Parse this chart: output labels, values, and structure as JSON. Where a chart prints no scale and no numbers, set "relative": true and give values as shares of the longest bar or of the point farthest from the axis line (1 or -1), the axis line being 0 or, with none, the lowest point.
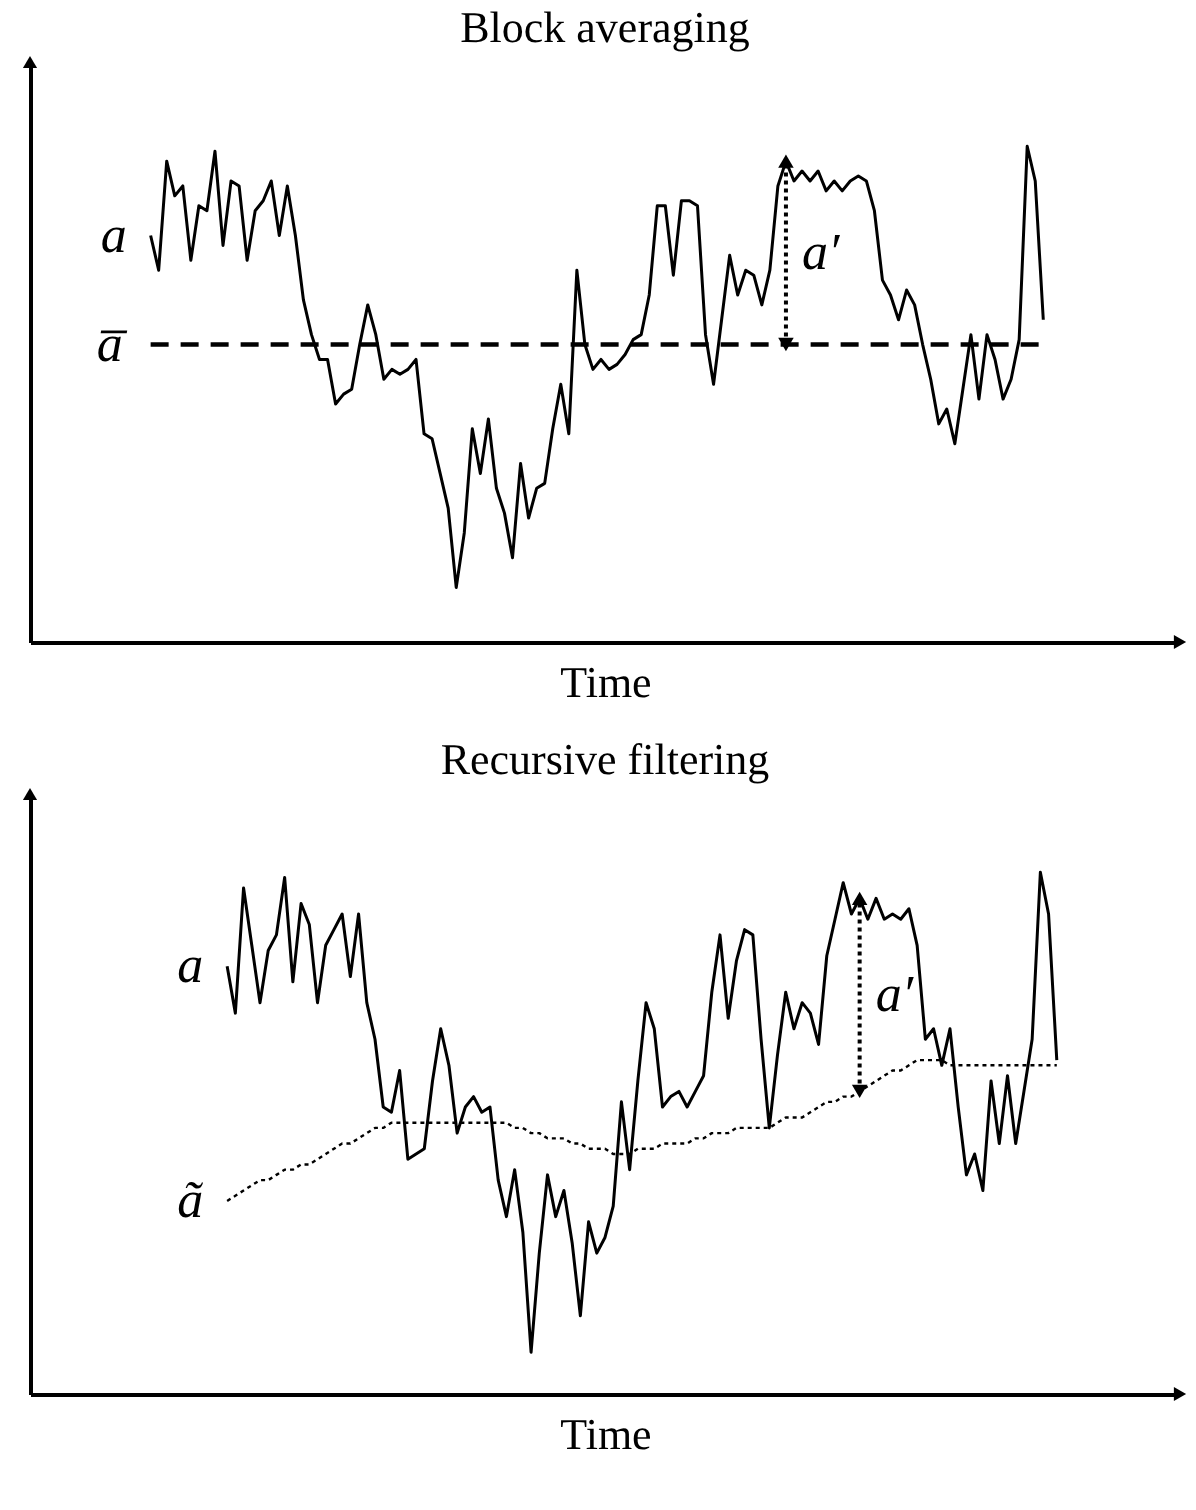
{
  "chart_data": [
    {
      "type": "line",
      "title": "Block averaging",
      "xlabel": "Time",
      "relative": true,
      "tick_labels": false,
      "grid": false,
      "categories": [
        null,
        null,
        null,
        null,
        null,
        null,
        null,
        null,
        null,
        null,
        null,
        null,
        null,
        null,
        null,
        null,
        null,
        null,
        null,
        null,
        null,
        null,
        null,
        null,
        null,
        null,
        null,
        null,
        null,
        null,
        null,
        null,
        null,
        null,
        null,
        null,
        null,
        null,
        null,
        null,
        null,
        null,
        null,
        null,
        null,
        null,
        null,
        null,
        null,
        null,
        null,
        null,
        null,
        null,
        null,
        null,
        null,
        null,
        null,
        null,
        null,
        null,
        null,
        null,
        null,
        null,
        null,
        null,
        null,
        null,
        null,
        null,
        null,
        null,
        null,
        null,
        null,
        null,
        null,
        null,
        null,
        null,
        null,
        null,
        null,
        null,
        null,
        null,
        null,
        null,
        null,
        null,
        null,
        null,
        null,
        null,
        null,
        null,
        null,
        null,
        null,
        null,
        null,
        null,
        null,
        null,
        null,
        null,
        null,
        null,
        null,
        null,
        null,
        null,
        null,
        null,
        null,
        null,
        null,
        null,
        null,
        null,
        null,
        null,
        null,
        null,
        null,
        null,
        null,
        null,
        null,
        null,
        null,
        null,
        null,
        null,
        null,
        null,
        null,
        null,
        null,
        null,
        null,
        null
      ],
      "series": [
        {
          "name": "a",
          "color": "#000000",
          "line_style": "solid",
          "values": [
            null,
            null,
            null,
            null,
            null,
            null,
            null,
            null,
            null,
            null,
            null,
            null,
            null,
            null,
            null,
            0.82,
            0.75,
            0.97,
            0.9,
            0.92,
            0.77,
            0.88,
            0.87,
            0.99,
            0.8,
            0.93,
            0.92,
            0.77,
            0.87,
            0.89,
            0.93,
            0.82,
            0.92,
            0.82,
            0.69,
            0.62,
            0.57,
            0.57,
            0.48,
            0.5,
            0.51,
            0.6,
            0.68,
            0.62,
            0.53,
            0.55,
            0.54,
            0.55,
            0.57,
            0.42,
            0.41,
            0.34,
            0.27,
            0.11,
            0.22,
            0.43,
            0.34,
            0.45,
            0.31,
            0.26,
            0.17,
            0.36,
            0.25,
            0.31,
            0.32,
            0.43,
            0.52,
            0.42,
            0.75,
            0.6,
            0.55,
            0.57,
            0.55,
            0.56,
            0.58,
            0.61,
            0.62,
            0.7,
            0.88,
            0.88,
            0.74,
            0.89,
            0.89,
            0.88,
            0.62,
            0.52,
            0.65,
            0.78,
            0.7,
            0.75,
            0.74,
            0.68,
            0.75,
            0.92,
            0.97,
            0.93,
            0.95,
            0.93,
            0.95,
            0.91,
            0.93,
            0.91,
            0.93,
            0.94,
            0.93,
            0.87,
            0.73,
            0.7,
            0.65,
            0.71,
            0.68,
            0.6,
            0.53,
            0.44,
            0.47,
            0.4,
            0.51,
            0.62,
            0.49,
            0.62,
            0.57,
            0.49,
            0.53,
            0.61,
            1.0,
            0.93,
            0.65,
            null,
            null,
            null,
            null,
            null,
            null,
            null,
            null,
            null,
            null,
            null,
            null,
            null,
            null,
            null,
            null,
            null
          ]
        }
      ],
      "ref_lines": [
        {
          "axis": "y",
          "value": 0.6,
          "label": "a̅",
          "color": "#000000",
          "line_style": "dashed"
        }
      ],
      "annotations": [
        "a′"
      ]
    },
    {
      "type": "line",
      "title": "Recursive filtering",
      "xlabel": "Time",
      "relative": true,
      "tick_labels": false,
      "grid": false,
      "categories": [
        null,
        null,
        null,
        null,
        null,
        null,
        null,
        null,
        null,
        null,
        null,
        null,
        null,
        null,
        null,
        null,
        null,
        null,
        null,
        null,
        null,
        null,
        null,
        null,
        null,
        null,
        null,
        null,
        null,
        null,
        null,
        null,
        null,
        null,
        null,
        null,
        null,
        null,
        null,
        null,
        null,
        null,
        null,
        null,
        null,
        null,
        null,
        null,
        null,
        null,
        null,
        null,
        null,
        null,
        null,
        null,
        null,
        null,
        null,
        null,
        null,
        null,
        null,
        null,
        null,
        null,
        null,
        null,
        null,
        null,
        null,
        null,
        null,
        null,
        null,
        null,
        null,
        null,
        null,
        null,
        null,
        null,
        null,
        null,
        null,
        null,
        null,
        null,
        null,
        null,
        null,
        null,
        null,
        null,
        null,
        null,
        null,
        null,
        null,
        null,
        null,
        null,
        null,
        null,
        null,
        null,
        null,
        null,
        null,
        null,
        null,
        null,
        null,
        null,
        null,
        null,
        null,
        null,
        null,
        null,
        null,
        null,
        null,
        null,
        null,
        null,
        null,
        null,
        null,
        null,
        null,
        null,
        null,
        null,
        null,
        null,
        null,
        null,
        null,
        null,
        null
      ],
      "series": [
        {
          "name": "a",
          "color": "#000000",
          "line_style": "solid",
          "values": [
            null,
            null,
            null,
            null,
            null,
            null,
            null,
            null,
            null,
            null,
            null,
            null,
            null,
            null,
            null,
            null,
            null,
            null,
            null,
            null,
            null,
            null,
            null,
            null,
            0.82,
            0.73,
            0.97,
            0.86,
            0.75,
            0.85,
            0.88,
            0.99,
            0.79,
            0.94,
            0.9,
            0.75,
            0.86,
            0.89,
            0.92,
            0.8,
            0.92,
            0.75,
            0.68,
            0.55,
            0.54,
            0.62,
            0.45,
            0.46,
            0.47,
            0.6,
            0.7,
            0.63,
            0.5,
            0.55,
            0.57,
            0.54,
            0.55,
            0.41,
            0.34,
            0.43,
            0.31,
            0.08,
            0.27,
            0.42,
            0.34,
            0.39,
            0.29,
            0.15,
            0.33,
            0.27,
            0.3,
            0.36,
            0.56,
            0.43,
            0.6,
            0.75,
            0.7,
            0.55,
            0.57,
            0.58,
            0.55,
            0.58,
            0.61,
            0.77,
            0.88,
            0.72,
            0.83,
            0.89,
            0.88,
            0.68,
            0.51,
            0.65,
            0.77,
            0.7,
            0.75,
            0.73,
            0.67,
            0.84,
            0.91,
            0.98,
            0.92,
            0.95,
            0.91,
            0.95,
            0.91,
            0.92,
            0.91,
            0.93,
            0.86,
            0.68,
            0.7,
            0.63,
            0.7,
            0.55,
            0.42,
            0.46,
            0.39,
            0.6,
            0.48,
            0.61,
            0.48,
            0.58,
            0.68,
            1.0,
            0.92,
            0.64,
            null,
            null,
            null,
            null,
            null,
            null,
            null,
            null,
            null,
            null,
            null,
            null,
            null,
            null,
            null
          ]
        },
        {
          "name": "ã",
          "color": "#000000",
          "line_style": "dotted",
          "values": [
            null,
            null,
            null,
            null,
            null,
            null,
            null,
            null,
            null,
            null,
            null,
            null,
            null,
            null,
            null,
            null,
            null,
            null,
            null,
            null,
            null,
            null,
            null,
            null,
            0.37,
            0.38,
            0.39,
            0.4,
            0.41,
            0.41,
            0.42,
            0.43,
            0.43,
            0.44,
            0.44,
            0.45,
            0.46,
            0.47,
            0.48,
            0.48,
            0.49,
            0.5,
            0.51,
            0.51,
            0.52,
            0.52,
            0.52,
            0.52,
            0.52,
            0.52,
            0.52,
            0.52,
            0.52,
            0.52,
            0.52,
            0.52,
            0.52,
            0.52,
            0.52,
            0.51,
            0.51,
            0.5,
            0.5,
            0.49,
            0.49,
            0.49,
            0.48,
            0.48,
            0.47,
            0.47,
            0.47,
            0.46,
            0.46,
            0.46,
            0.47,
            0.47,
            0.47,
            0.48,
            0.48,
            0.48,
            0.48,
            0.49,
            0.49,
            0.5,
            0.5,
            0.5,
            0.51,
            0.51,
            0.51,
            0.51,
            0.51,
            0.52,
            0.53,
            0.53,
            0.53,
            0.54,
            0.55,
            0.56,
            0.56,
            0.57,
            0.57,
            0.58,
            0.59,
            0.6,
            0.61,
            0.62,
            0.62,
            0.63,
            0.64,
            0.64,
            0.64,
            0.64,
            0.63,
            0.63,
            0.63,
            0.63,
            0.63,
            0.63,
            0.63,
            0.63,
            0.63,
            0.63,
            0.63,
            0.63,
            0.63,
            0.63,
            null,
            null,
            null,
            null,
            null,
            null,
            null,
            null,
            null,
            null,
            null,
            null,
            null,
            null,
            null
          ]
        }
      ],
      "annotations": [
        "a′"
      ]
    }
  ]
}
